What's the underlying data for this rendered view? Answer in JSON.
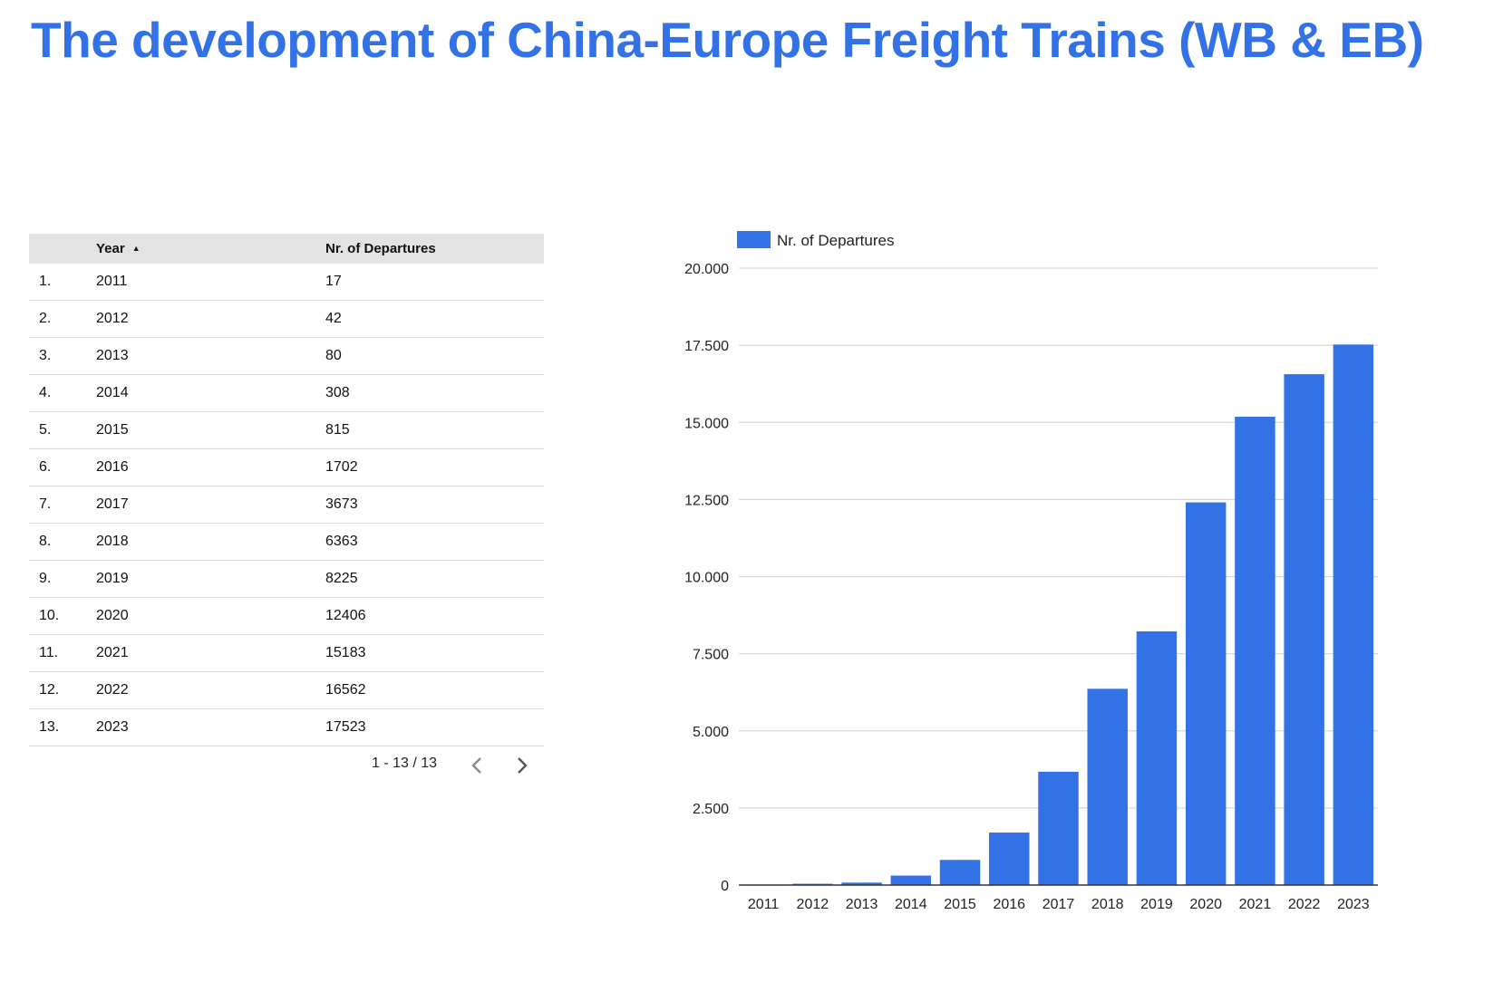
{
  "title": "The development of China-Europe Freight Trains (WB & EB)",
  "colors": {
    "accent": "#3272e6",
    "grid": "#d9d9d9",
    "header_bg": "#e3e3e3"
  },
  "table": {
    "columns": {
      "index": "",
      "year": "Year",
      "departures": "Nr. of Departures"
    },
    "sort_icon": "sort-ascending-icon",
    "rows": [
      {
        "index": "1.",
        "year": "2011",
        "departures": "17"
      },
      {
        "index": "2.",
        "year": "2012",
        "departures": "42"
      },
      {
        "index": "3.",
        "year": "2013",
        "departures": "80"
      },
      {
        "index": "4.",
        "year": "2014",
        "departures": "308"
      },
      {
        "index": "5.",
        "year": "2015",
        "departures": "815"
      },
      {
        "index": "6.",
        "year": "2016",
        "departures": "1702"
      },
      {
        "index": "7.",
        "year": "2017",
        "departures": "3673"
      },
      {
        "index": "8.",
        "year": "2018",
        "departures": "6363"
      },
      {
        "index": "9.",
        "year": "2019",
        "departures": "8225"
      },
      {
        "index": "10.",
        "year": "2020",
        "departures": "12406"
      },
      {
        "index": "11.",
        "year": "2021",
        "departures": "15183"
      },
      {
        "index": "12.",
        "year": "2022",
        "departures": "16562"
      },
      {
        "index": "13.",
        "year": "2023",
        "departures": "17523"
      }
    ],
    "pagination": {
      "label": "1 - 13 / 13",
      "prev_icon": "chevron-left-icon",
      "next_icon": "chevron-right-icon"
    }
  },
  "chart_data": {
    "type": "bar",
    "categories": [
      "2011",
      "2012",
      "2013",
      "2014",
      "2015",
      "2016",
      "2017",
      "2018",
      "2019",
      "2020",
      "2021",
      "2022",
      "2023"
    ],
    "series": [
      {
        "name": "Nr. of Departures",
        "values": [
          17,
          42,
          80,
          308,
          815,
          1702,
          3673,
          6363,
          8225,
          12406,
          15183,
          16562,
          17523
        ]
      }
    ],
    "ylim": [
      0,
      20000
    ],
    "yticks": [
      0,
      2500,
      5000,
      7500,
      10000,
      12500,
      15000,
      17500,
      20000
    ],
    "ytick_labels": [
      "0",
      "2.500",
      "5.000",
      "7.500",
      "10.000",
      "12.500",
      "15.000",
      "17.500",
      "20.000"
    ],
    "grid": true,
    "legend": "top-left"
  }
}
